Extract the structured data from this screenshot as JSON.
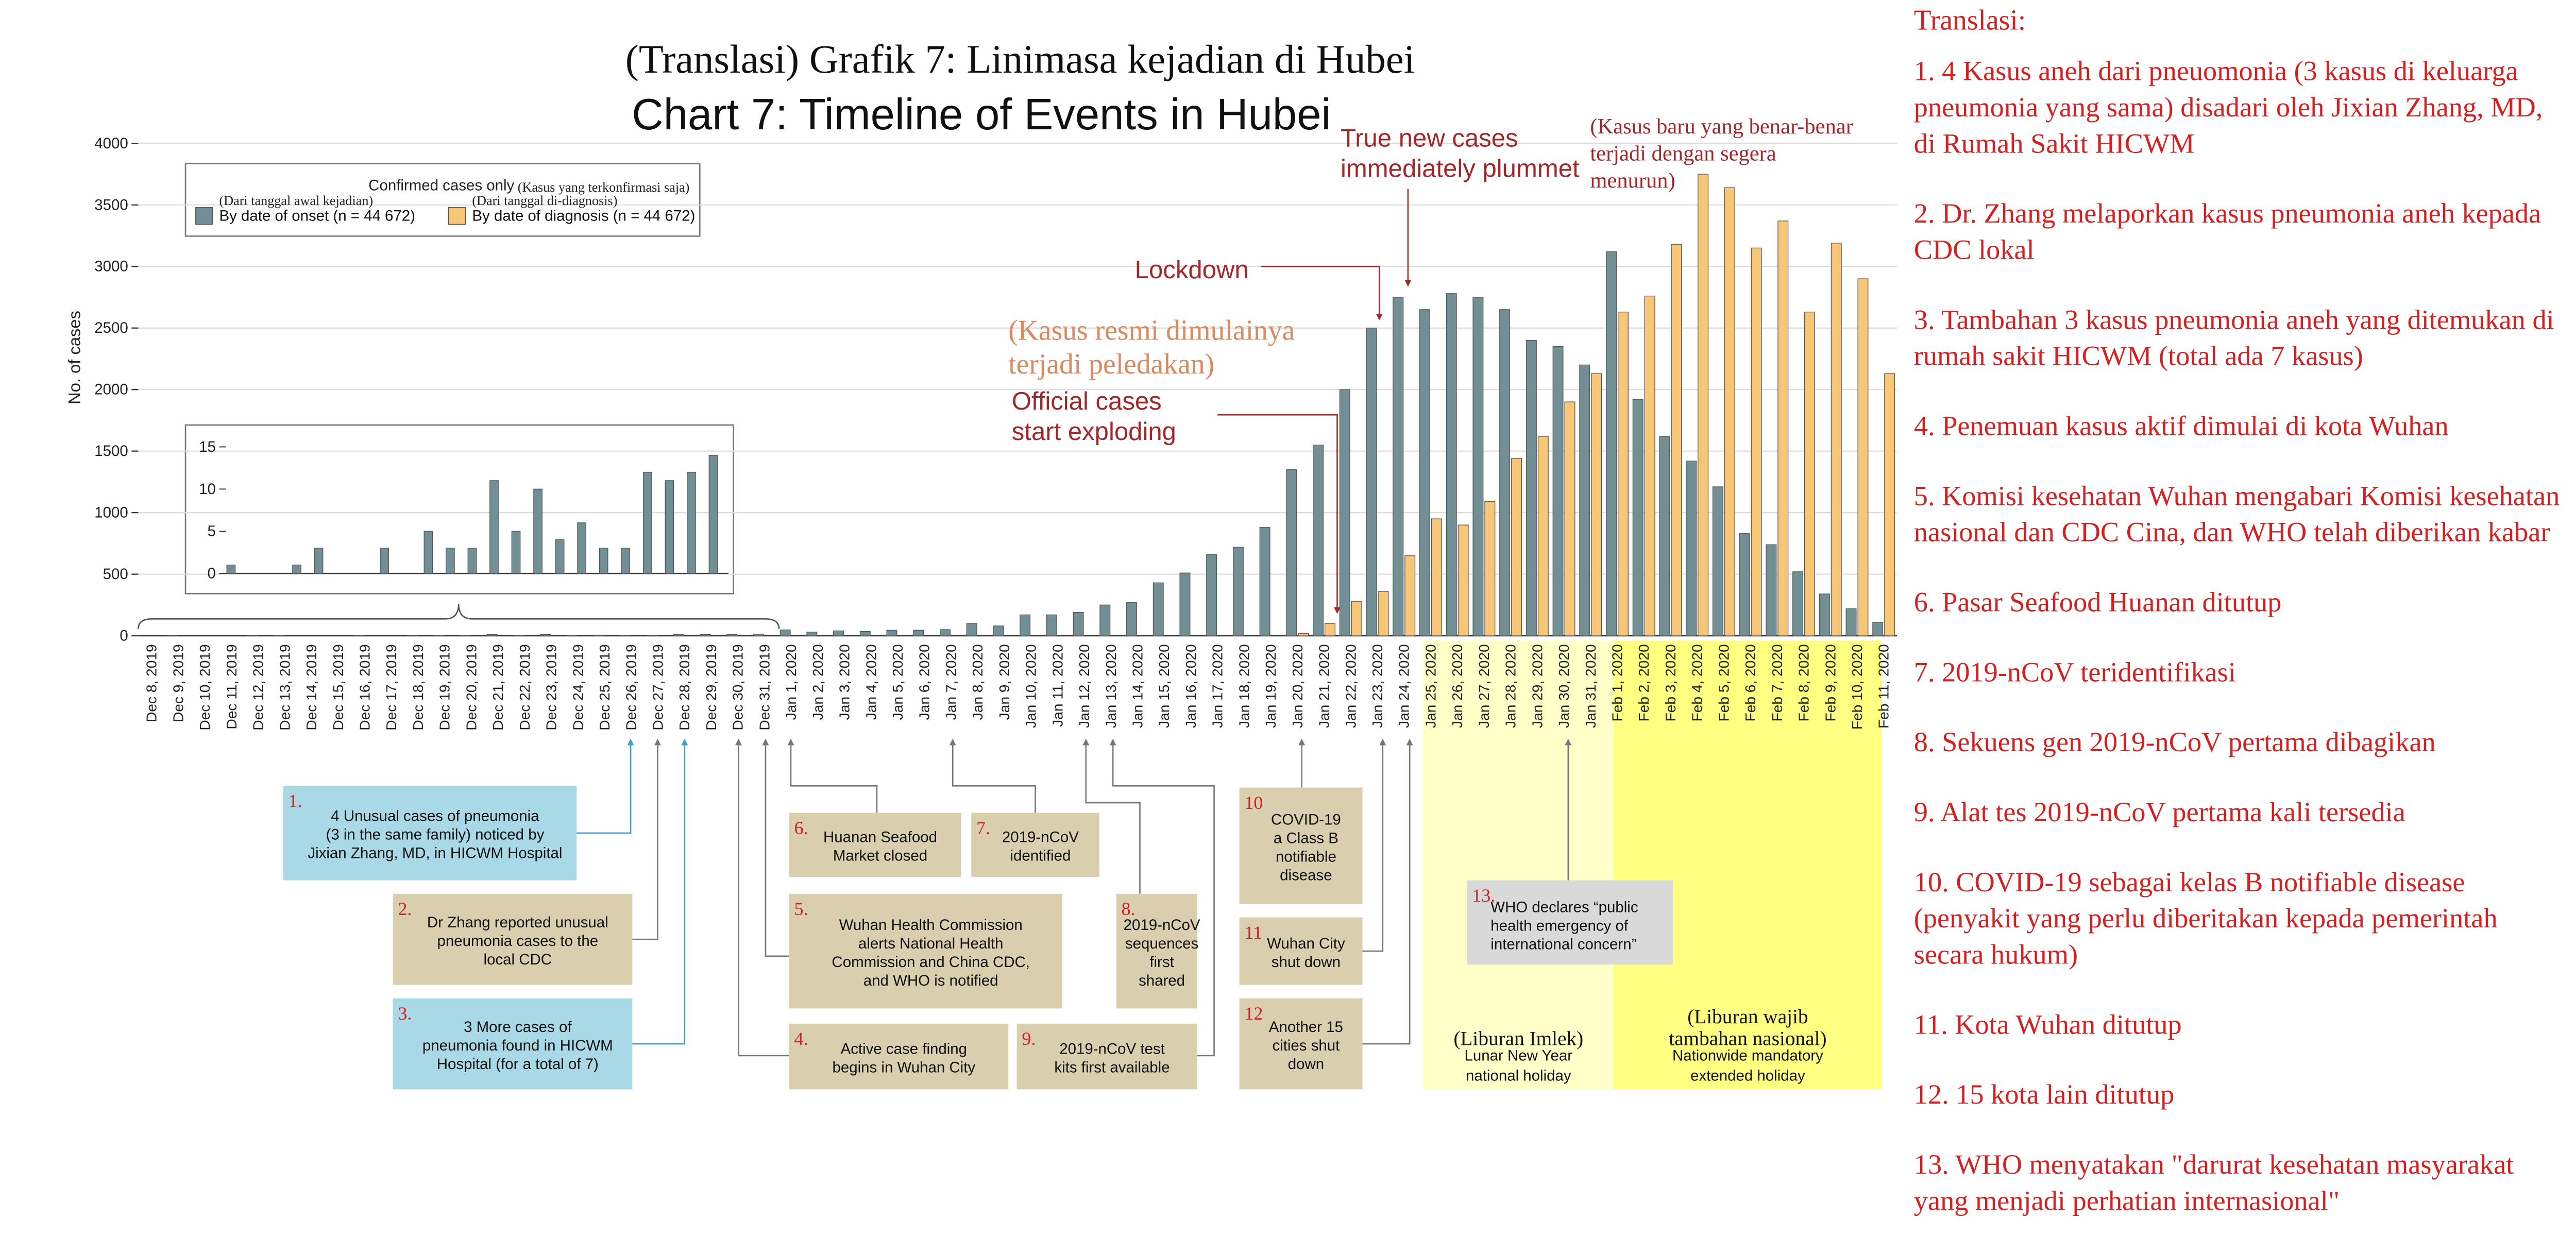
{
  "chart_data": {
    "type": "bar",
    "title": "Chart 7: Timeline of Events in Hubei",
    "title_translation": "(Translasi) Grafik 7: Linimasa kejadian di Hubei",
    "y_label": "No. of cases",
    "legend_title": "Confirmed cases only",
    "legend_title_translation": "(Kasus yang terkonfirmasi saja)",
    "categories": [
      "Dec 8, 2019",
      "Dec 9, 2019",
      "Dec 10, 2019",
      "Dec 11, 2019",
      "Dec 12, 2019",
      "Dec 13, 2019",
      "Dec 14, 2019",
      "Dec 15, 2019",
      "Dec 16, 2019",
      "Dec 17, 2019",
      "Dec 18, 2019",
      "Dec 19, 2019",
      "Dec 20, 2019",
      "Dec 21, 2019",
      "Dec 22, 2019",
      "Dec 23, 2019",
      "Dec 24, 2019",
      "Dec 25, 2019",
      "Dec 26, 2019",
      "Dec 27, 2019",
      "Dec 28, 2019",
      "Dec 29, 2019",
      "Dec 30, 2019",
      "Dec 31, 2019",
      "Jan 1, 2020",
      "Jan 2, 2020",
      "Jan 3, 2020",
      "Jan 4, 2020",
      "Jan 5, 2020",
      "Jan 6, 2020",
      "Jan 7, 2020",
      "Jan 8, 2020",
      "Jan 9, 2020",
      "Jan 10, 2020",
      "Jan 11, 2020",
      "Jan 12, 2020",
      "Jan 13, 2020",
      "Jan 14, 2020",
      "Jan 15, 2020",
      "Jan 16, 2020",
      "Jan 17, 2020",
      "Jan 18, 2020",
      "Jan 19, 2020",
      "Jan 20, 2020",
      "Jan 21, 2020",
      "Jan 22, 2020",
      "Jan 23, 2020",
      "Jan 24, 2020",
      "Jan 25, 2020",
      "Jan 26, 2020",
      "Jan 27, 2020",
      "Jan 28, 2020",
      "Jan 29, 2020",
      "Jan 30, 2020",
      "Jan 31, 2020",
      "Feb 1, 2020",
      "Feb 2, 2020",
      "Feb 3, 2020",
      "Feb 4, 2020",
      "Feb 5, 2020",
      "Feb 6, 2020",
      "Feb 7, 2020",
      "Feb 8, 2020",
      "Feb 9, 2020",
      "Feb 10, 2020",
      "Feb 11, 2020"
    ],
    "series": [
      {
        "name": "By date of onset (n = 44 672)",
        "name_translation": "(Dari tanggal awal kejadian)",
        "color": "#718f94",
        "values": [
          0,
          1,
          0,
          0,
          1,
          3,
          0,
          0,
          3,
          0,
          5,
          3,
          3,
          11,
          5,
          10,
          4,
          6,
          3,
          3,
          12,
          11,
          12,
          14,
          48,
          30,
          40,
          35,
          45,
          45,
          50,
          100,
          80,
          170,
          170,
          190,
          250,
          270,
          430,
          510,
          660,
          720,
          880,
          1350,
          1550,
          2000,
          2500,
          2750,
          2650,
          2780,
          2750,
          2650,
          2400,
          2350,
          2200,
          3120,
          1920,
          1620,
          1420,
          1210,
          830,
          740,
          520,
          340,
          220,
          110
        ]
      },
      {
        "name": "By date of diagnosis (n = 44 672)",
        "name_translation": "(Dari tanggal di-diagnosis)",
        "color": "#f7c676",
        "values": [
          0,
          0,
          0,
          0,
          0,
          0,
          0,
          0,
          0,
          0,
          0,
          0,
          0,
          0,
          0,
          0,
          0,
          0,
          0,
          0,
          0,
          0,
          0,
          0,
          0,
          0,
          0,
          0,
          0,
          0,
          0,
          0,
          0,
          0,
          0,
          0,
          0,
          0,
          0,
          0,
          0,
          0,
          0,
          20,
          100,
          280,
          360,
          650,
          950,
          900,
          1090,
          1440,
          1620,
          1900,
          2130,
          2630,
          2760,
          3180,
          3750,
          3640,
          3150,
          3370,
          2630,
          3190,
          2900,
          2130
        ]
      }
    ],
    "ylim": [
      0,
      4000
    ],
    "yticks": [
      0,
      500,
      1000,
      1500,
      2000,
      2500,
      3000,
      3500,
      4000
    ],
    "grid": true,
    "inset": {
      "ylim": [
        0,
        15
      ],
      "yticks": [
        0,
        5,
        10,
        15
      ]
    },
    "annotations": [
      {
        "lines": [
          "Lockdown"
        ]
      },
      {
        "lines": [
          "True new cases",
          "immediately plummet"
        ]
      },
      {
        "lines": [
          "(Kasus baru yang benar-benar",
          "terjadi dengan segera",
          "menurun)"
        ]
      },
      {
        "lines": [
          "(Kasus resmi dimulainya",
          "terjadi peledakan)"
        ]
      },
      {
        "lines": [
          "Official cases",
          "start exploding"
        ]
      }
    ],
    "events": [
      {
        "number": "1.",
        "lines": [
          "4 Unusual cases of pneumonia",
          "(3 in the same family) noticed by",
          "Jixian Zhang, MD, in HICWM Hospital"
        ]
      },
      {
        "number": "2.",
        "lines": [
          "Dr Zhang reported unusual",
          "pneumonia cases to the",
          "local CDC"
        ]
      },
      {
        "number": "3.",
        "lines": [
          "3 More cases of",
          "pneumonia found in HICWM",
          "Hospital (for a total of 7)"
        ]
      },
      {
        "number": "4.",
        "lines": [
          "Active case finding",
          "begins in Wuhan City"
        ]
      },
      {
        "number": "5.",
        "lines": [
          "Wuhan Health Commission",
          "alerts National Health",
          "Commission and China CDC,",
          "and WHO is notified"
        ]
      },
      {
        "number": "6.",
        "lines": [
          "Huanan Seafood",
          "Market closed"
        ]
      },
      {
        "number": "7.",
        "lines": [
          "2019-nCoV",
          "identified"
        ]
      },
      {
        "number": "8.",
        "lines": [
          "2019-nCoV",
          "sequences",
          "first",
          "shared"
        ]
      },
      {
        "number": "9.",
        "lines": [
          "2019-nCoV test",
          "kits first available"
        ]
      },
      {
        "number": "10",
        "lines": [
          "COVID-19",
          "a Class B",
          "notifiable",
          "disease"
        ]
      },
      {
        "number": "11",
        "lines": [
          "Wuhan City",
          "shut down"
        ]
      },
      {
        "number": "12",
        "lines": [
          "Another 15",
          "cities shut",
          "down"
        ]
      },
      {
        "number": "13.",
        "lines": [
          "WHO declares “public",
          "health emergency of",
          "international concern”"
        ]
      }
    ],
    "holidays": [
      {
        "translation": "(Liburan Imlek)",
        "lines": [
          "Lunar New Year",
          "national holiday"
        ]
      },
      {
        "translation": [
          "(Liburan wajib",
          "tambahan nasional)"
        ],
        "lines": [
          "Nationwide mandatory",
          "extended holiday"
        ]
      }
    ]
  },
  "translation_panel": {
    "title": "Translasi:",
    "items": [
      {
        "lines": [
          "1. 4 Kasus aneh dari pneuomonia (3 kasus di keluarga",
          "pneumonia yang sama) disadari oleh Jixian Zhang, MD,",
          "di Rumah Sakit HICWM"
        ]
      },
      {
        "lines": [
          "2. Dr. Zhang melaporkan kasus pneumonia aneh kepada",
          "CDC lokal"
        ]
      },
      {
        "lines": [
          "3. Tambahan 3 kasus pneumonia aneh yang ditemukan di",
          "rumah sakit HICWM (total ada 7 kasus)"
        ]
      },
      {
        "lines": [
          "4. Penemuan kasus aktif dimulai di kota Wuhan"
        ]
      },
      {
        "lines": [
          "5. Komisi kesehatan Wuhan mengabari Komisi kesehatan",
          "nasional dan CDC Cina, dan WHO telah diberikan kabar"
        ]
      },
      {
        "lines": [
          "6. Pasar Seafood Huanan ditutup"
        ]
      },
      {
        "lines": [
          "7. 2019-nCoV teridentifikasi"
        ]
      },
      {
        "lines": [
          "8. Sekuens gen 2019-nCoV pertama dibagikan"
        ]
      },
      {
        "lines": [
          "9. Alat tes 2019-nCoV pertama kali tersedia"
        ]
      },
      {
        "lines": [
          "10. COVID-19 sebagai kelas B notifiable disease",
          "(penyakit yang perlu diberitakan kepada pemerintah",
          "secara hukum)"
        ]
      },
      {
        "lines": [
          "11. Kota Wuhan ditutup"
        ]
      },
      {
        "lines": [
          "12. 15 kota lain ditutup"
        ]
      },
      {
        "lines": [
          "13. WHO menyatakan \"darurat kesehatan masyarakat",
          "yang menjadi perhatian internasional\""
        ]
      }
    ]
  }
}
